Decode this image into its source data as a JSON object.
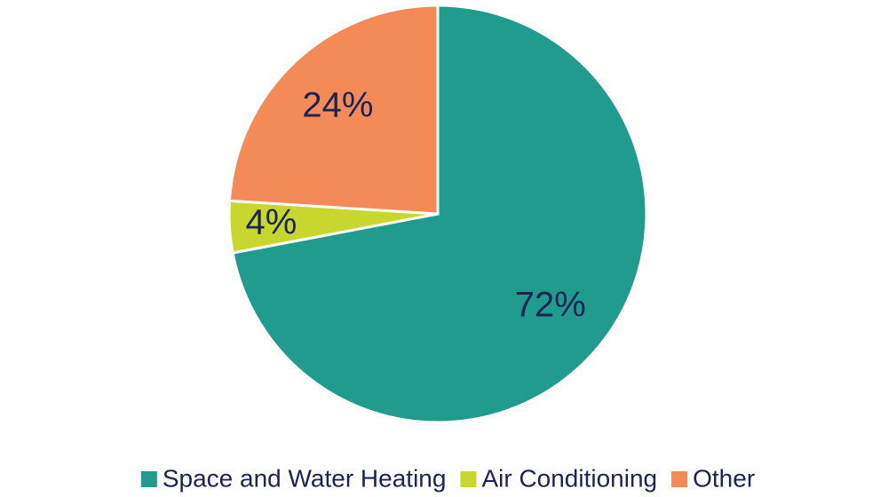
{
  "chart_data": {
    "type": "pie",
    "categories": [
      "Space and Water Heating",
      "Air Conditioning",
      "Other"
    ],
    "values": [
      72,
      4,
      24
    ],
    "value_labels": [
      "72%",
      "4%",
      "24%"
    ],
    "colors": [
      "#1f9c8d",
      "#c8d72d",
      "#f58a59"
    ],
    "legend": "bottom"
  }
}
